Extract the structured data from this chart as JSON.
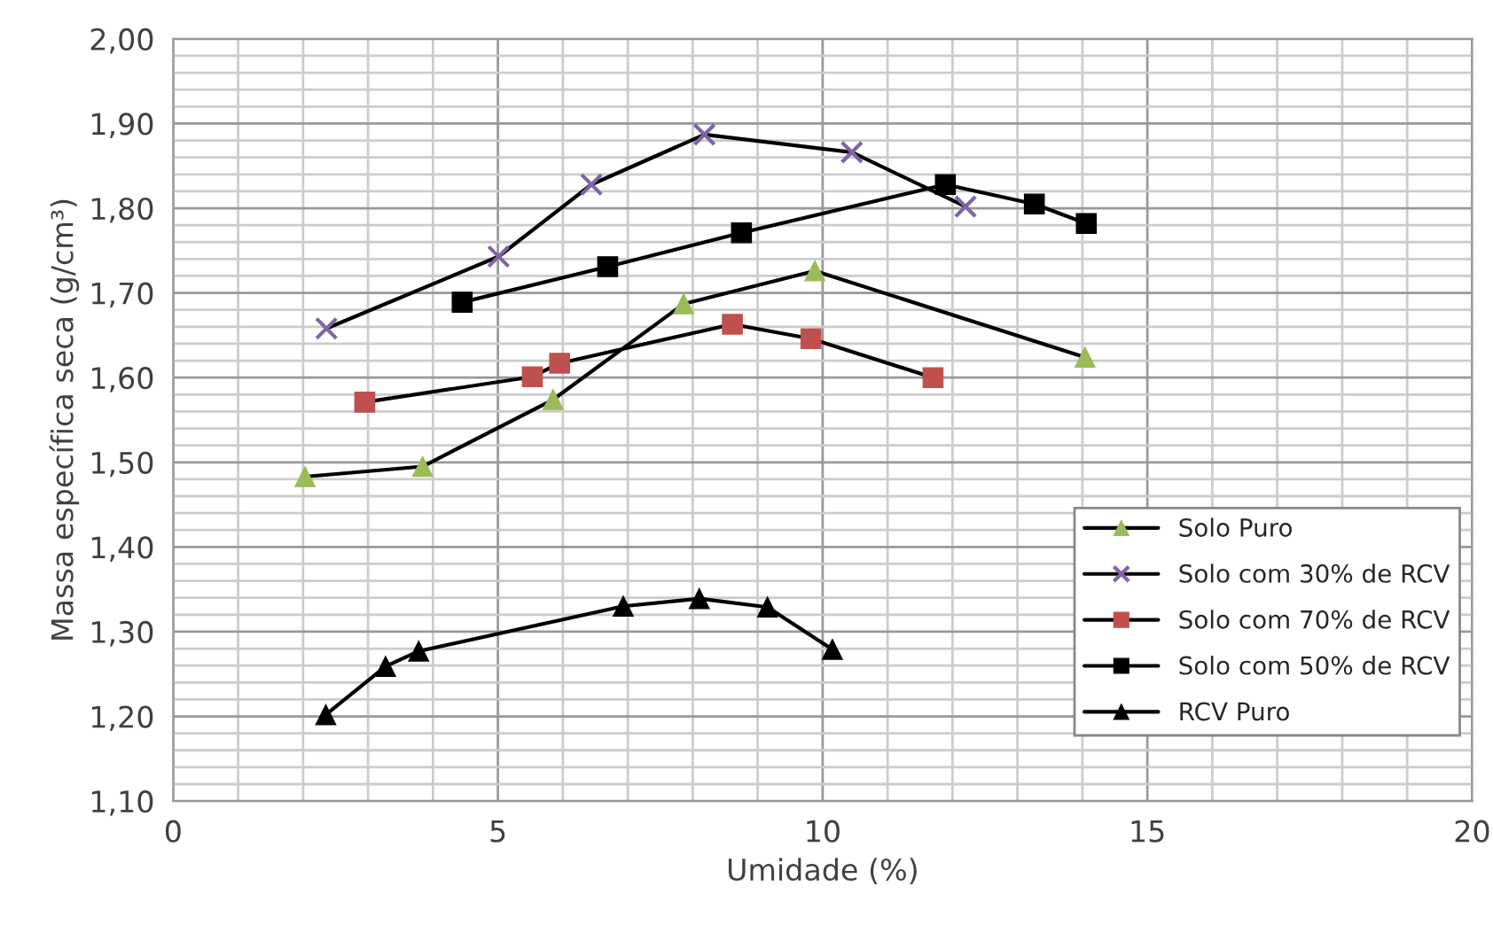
{
  "chart_data": {
    "type": "line",
    "xlabel": "Umidade (%)",
    "ylabel": "Massa específica seca (g/cm³)",
    "xlim": [
      0,
      20
    ],
    "xticks": [
      0,
      5,
      10,
      15,
      20
    ],
    "ylim": [
      1.1,
      2.0
    ],
    "yticks": [
      {
        "value": 1.1,
        "label": "1,10"
      },
      {
        "value": 1.2,
        "label": "1,20"
      },
      {
        "value": 1.3,
        "label": "1,30"
      },
      {
        "value": 1.4,
        "label": "1,40"
      },
      {
        "value": 1.5,
        "label": "1,50"
      },
      {
        "value": 1.6,
        "label": "1,60"
      },
      {
        "value": 1.7,
        "label": "1,70"
      },
      {
        "value": 1.8,
        "label": "1,80"
      },
      {
        "value": 1.9,
        "label": "1,90"
      },
      {
        "value": 2.0,
        "label": "2,00"
      }
    ],
    "grid": true,
    "legend": "bottom right",
    "series": [
      {
        "name": "Solo Puro",
        "color": "#9bbb59",
        "marker": "triangle",
        "x": [
          2.03,
          3.84,
          5.85,
          7.86,
          9.88,
          14.04
        ],
        "values": [
          1.483,
          1.495,
          1.574,
          1.687,
          1.726,
          1.624
        ]
      },
      {
        "name": "Solo com 30% de RCV",
        "color": "#8064a2",
        "marker": "cross",
        "x": [
          2.36,
          5.01,
          6.44,
          8.18,
          10.45,
          12.2
        ],
        "values": [
          1.658,
          1.743,
          1.828,
          1.887,
          1.866,
          1.802
        ]
      },
      {
        "name": "Solo com 70% de RCV",
        "color": "#c0504d",
        "marker": "square",
        "x": [
          2.95,
          5.53,
          5.95,
          8.61,
          9.82,
          11.7
        ],
        "values": [
          1.571,
          1.601,
          1.617,
          1.663,
          1.646,
          1.6
        ]
      },
      {
        "name": "Solo com 50% de RCV",
        "color": "#000000",
        "marker": "square",
        "x": [
          4.45,
          6.69,
          8.75,
          11.89,
          13.26,
          14.06
        ],
        "values": [
          1.689,
          1.731,
          1.771,
          1.828,
          1.805,
          1.782
        ]
      },
      {
        "name": "RCV Puro",
        "color": "#000000",
        "marker": "triangle",
        "x": [
          2.35,
          3.27,
          3.78,
          6.93,
          8.1,
          9.15,
          10.15
        ],
        "values": [
          1.202,
          1.259,
          1.277,
          1.33,
          1.339,
          1.329,
          1.279
        ]
      }
    ]
  }
}
